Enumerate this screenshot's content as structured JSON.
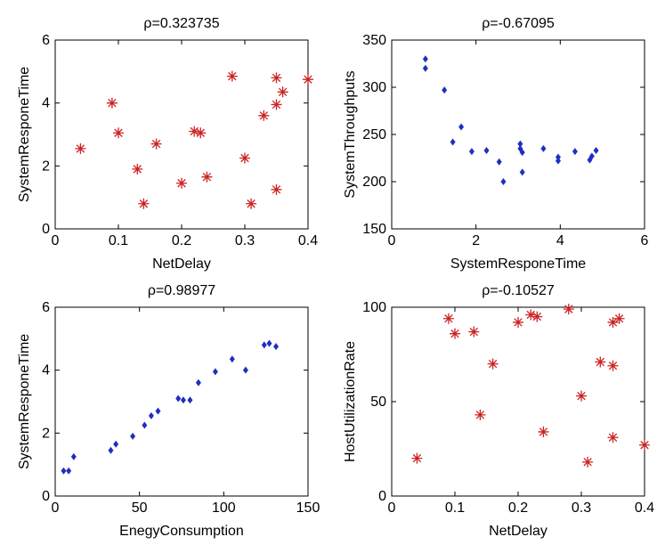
{
  "figure": {
    "background": "#ffffff"
  },
  "chart_data": [
    {
      "type": "scatter",
      "title": "ρ=0.323735",
      "xlabel": "NetDelay",
      "ylabel": "SystemResponeTime",
      "xlim": [
        0,
        0.4
      ],
      "ylim": [
        0,
        6
      ],
      "xticks": [
        0,
        0.1,
        0.2,
        0.3,
        0.4
      ],
      "xtick_labels": [
        "0",
        "0.1",
        "0.2",
        "0.3",
        "0.4"
      ],
      "yticks": [
        0,
        2,
        4,
        6
      ],
      "ytick_labels": [
        "0",
        "2",
        "4",
        "6"
      ],
      "marker": "star",
      "color": "#cc2222",
      "grid": false,
      "points": [
        {
          "x": 0.04,
          "y": 2.55
        },
        {
          "x": 0.09,
          "y": 4.0
        },
        {
          "x": 0.1,
          "y": 3.05
        },
        {
          "x": 0.13,
          "y": 1.9
        },
        {
          "x": 0.14,
          "y": 0.8
        },
        {
          "x": 0.16,
          "y": 2.7
        },
        {
          "x": 0.2,
          "y": 1.45
        },
        {
          "x": 0.22,
          "y": 3.1
        },
        {
          "x": 0.23,
          "y": 3.05
        },
        {
          "x": 0.24,
          "y": 1.65
        },
        {
          "x": 0.28,
          "y": 4.85
        },
        {
          "x": 0.3,
          "y": 2.25
        },
        {
          "x": 0.31,
          "y": 0.8
        },
        {
          "x": 0.33,
          "y": 3.6
        },
        {
          "x": 0.35,
          "y": 4.8
        },
        {
          "x": 0.35,
          "y": 3.95
        },
        {
          "x": 0.35,
          "y": 1.25
        },
        {
          "x": 0.36,
          "y": 4.35
        },
        {
          "x": 0.4,
          "y": 4.75
        }
      ]
    },
    {
      "type": "scatter",
      "title": "ρ=-0.67095",
      "xlabel": "SystemResponeTime",
      "ylabel": "SystemThroughputs",
      "xlim": [
        0,
        6
      ],
      "ylim": [
        150,
        350
      ],
      "xticks": [
        0,
        2,
        4,
        6
      ],
      "xtick_labels": [
        "0",
        "2",
        "4",
        "6"
      ],
      "yticks": [
        150,
        200,
        250,
        300,
        350
      ],
      "ytick_labels": [
        "150",
        "200",
        "250",
        "300",
        "350"
      ],
      "marker": "diamond",
      "color": "#1f2fbf",
      "grid": false,
      "points": [
        {
          "x": 0.8,
          "y": 330
        },
        {
          "x": 0.8,
          "y": 320
        },
        {
          "x": 1.25,
          "y": 297
        },
        {
          "x": 1.45,
          "y": 242
        },
        {
          "x": 1.65,
          "y": 258
        },
        {
          "x": 1.9,
          "y": 232
        },
        {
          "x": 2.25,
          "y": 233
        },
        {
          "x": 2.55,
          "y": 221
        },
        {
          "x": 2.65,
          "y": 200
        },
        {
          "x": 3.05,
          "y": 240
        },
        {
          "x": 3.05,
          "y": 235
        },
        {
          "x": 3.1,
          "y": 231
        },
        {
          "x": 3.1,
          "y": 210
        },
        {
          "x": 3.6,
          "y": 235
        },
        {
          "x": 3.95,
          "y": 226
        },
        {
          "x": 3.95,
          "y": 222
        },
        {
          "x": 4.35,
          "y": 232
        },
        {
          "x": 4.7,
          "y": 223
        },
        {
          "x": 4.75,
          "y": 227
        },
        {
          "x": 4.85,
          "y": 233
        }
      ]
    },
    {
      "type": "scatter",
      "title": "ρ=0.98977",
      "xlabel": "EnegyConsumption",
      "ylabel": "SystemResponeTime",
      "xlim": [
        0,
        150
      ],
      "ylim": [
        0,
        6
      ],
      "xticks": [
        0,
        50,
        100,
        150
      ],
      "xtick_labels": [
        "0",
        "50",
        "100",
        "150"
      ],
      "yticks": [
        0,
        2,
        4,
        6
      ],
      "ytick_labels": [
        "0",
        "2",
        "4",
        "6"
      ],
      "marker": "diamond",
      "color": "#1f2fbf",
      "grid": false,
      "points": [
        {
          "x": 5,
          "y": 0.8
        },
        {
          "x": 8,
          "y": 0.8
        },
        {
          "x": 11,
          "y": 1.25
        },
        {
          "x": 33,
          "y": 1.45
        },
        {
          "x": 36,
          "y": 1.65
        },
        {
          "x": 46,
          "y": 1.9
        },
        {
          "x": 53,
          "y": 2.25
        },
        {
          "x": 57,
          "y": 2.55
        },
        {
          "x": 61,
          "y": 2.7
        },
        {
          "x": 73,
          "y": 3.1
        },
        {
          "x": 76,
          "y": 3.05
        },
        {
          "x": 80,
          "y": 3.05
        },
        {
          "x": 85,
          "y": 3.6
        },
        {
          "x": 95,
          "y": 3.95
        },
        {
          "x": 105,
          "y": 4.35
        },
        {
          "x": 113,
          "y": 4.0
        },
        {
          "x": 124,
          "y": 4.8
        },
        {
          "x": 127,
          "y": 4.85
        },
        {
          "x": 131,
          "y": 4.75
        }
      ]
    },
    {
      "type": "scatter",
      "title": "ρ=-0.10527",
      "xlabel": "NetDelay",
      "ylabel": "HostUtilizationRate",
      "xlim": [
        0,
        0.4
      ],
      "ylim": [
        0,
        100
      ],
      "xticks": [
        0,
        0.1,
        0.2,
        0.3,
        0.4
      ],
      "xtick_labels": [
        "0",
        "0.1",
        "0.2",
        "0.3",
        "0.4"
      ],
      "yticks": [
        0,
        50,
        100
      ],
      "ytick_labels": [
        "0",
        "50",
        "100"
      ],
      "marker": "star",
      "color": "#cc2222",
      "grid": false,
      "points": [
        {
          "x": 0.04,
          "y": 20
        },
        {
          "x": 0.09,
          "y": 94
        },
        {
          "x": 0.1,
          "y": 86
        },
        {
          "x": 0.13,
          "y": 87
        },
        {
          "x": 0.14,
          "y": 43
        },
        {
          "x": 0.16,
          "y": 70
        },
        {
          "x": 0.2,
          "y": 92
        },
        {
          "x": 0.22,
          "y": 96
        },
        {
          "x": 0.23,
          "y": 95
        },
        {
          "x": 0.24,
          "y": 34
        },
        {
          "x": 0.28,
          "y": 99
        },
        {
          "x": 0.3,
          "y": 53
        },
        {
          "x": 0.31,
          "y": 18
        },
        {
          "x": 0.33,
          "y": 71
        },
        {
          "x": 0.35,
          "y": 92
        },
        {
          "x": 0.35,
          "y": 69
        },
        {
          "x": 0.35,
          "y": 31
        },
        {
          "x": 0.36,
          "y": 94
        },
        {
          "x": 0.4,
          "y": 27
        }
      ]
    }
  ]
}
